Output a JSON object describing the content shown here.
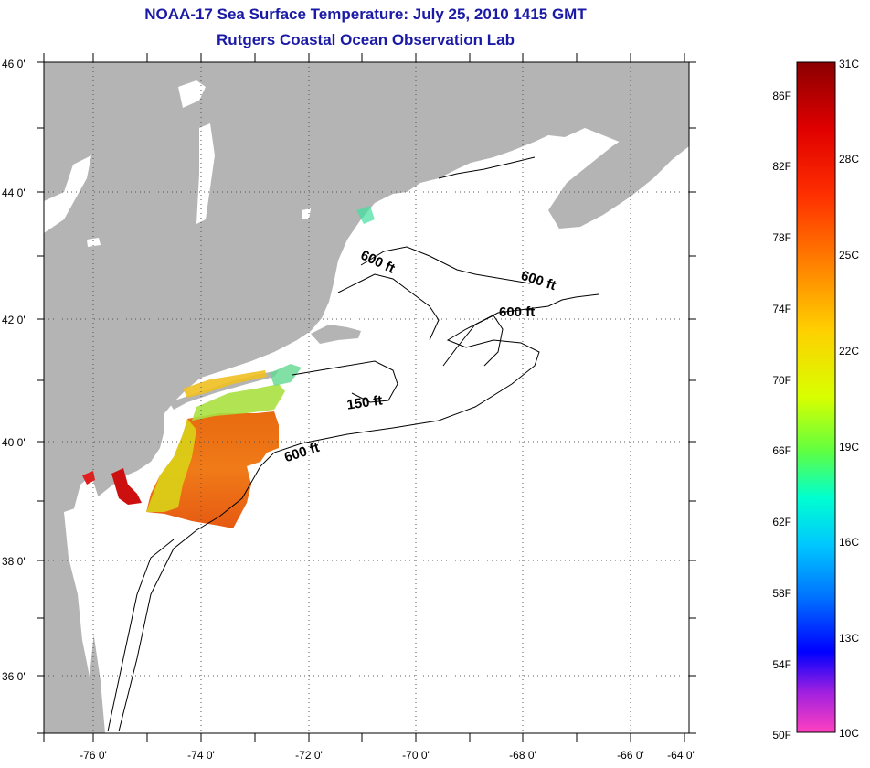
{
  "title": {
    "line1": "NOAA-17 Sea Surface Temperature:  July 25, 2010 1415 GMT",
    "line2": "Rutgers Coastal Ocean Observation Lab"
  },
  "map": {
    "lat_labels": [
      "46 0'",
      "44 0'",
      "42 0'",
      "40 0'",
      "38 0'",
      "36 0'"
    ],
    "lon_labels": [
      "-76 0'",
      "-74 0'",
      "-72 0'",
      "-70 0'",
      "-68 0'",
      "-66 0'",
      "-64 0'"
    ],
    "contour_labels": [
      "600 ft",
      "600 ft",
      "600 ft",
      "150 ft",
      "600 ft"
    ]
  },
  "colorbar": {
    "fahrenheit": [
      "86F",
      "82F",
      "78F",
      "74F",
      "70F",
      "66F",
      "62F",
      "58F",
      "54F",
      "50F"
    ],
    "celsius": [
      "31C",
      "28C",
      "25C",
      "22C",
      "19C",
      "16C",
      "13C",
      "10C"
    ]
  },
  "colors": {
    "land": "#b4b4b4",
    "title": "#1a1aa6"
  }
}
